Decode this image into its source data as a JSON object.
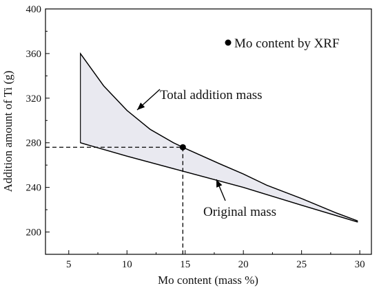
{
  "chart_data": {
    "type": "area",
    "xlabel": "Mo content (mass %)",
    "ylabel": "Addition amount of Ti (g)",
    "xlim": [
      3,
      31
    ],
    "ylim": [
      180,
      400
    ],
    "xticks": [
      5,
      10,
      15,
      20,
      25,
      30
    ],
    "yticks": [
      200,
      240,
      280,
      320,
      360,
      400
    ],
    "grid": false,
    "series": [
      {
        "name": "Total addition mass",
        "x": [
          6,
          8,
          10,
          12,
          14,
          15,
          18,
          20,
          22,
          25,
          28,
          29.8
        ],
        "y": [
          360,
          331,
          309,
          292,
          280,
          275,
          261,
          252,
          242,
          230,
          217,
          210
        ]
      },
      {
        "name": "Original mass",
        "x": [
          6,
          10,
          15,
          20,
          25,
          29.8
        ],
        "y": [
          280,
          268,
          254,
          240,
          224,
          209
        ]
      }
    ],
    "marker": {
      "label": "Mo content by XRF",
      "x": 14.8,
      "y": 276
    },
    "annotations": {
      "total": "Total addition mass",
      "original": "Original mass"
    },
    "colors": {
      "fill": "#e9e9f0",
      "line": "#000000"
    }
  }
}
